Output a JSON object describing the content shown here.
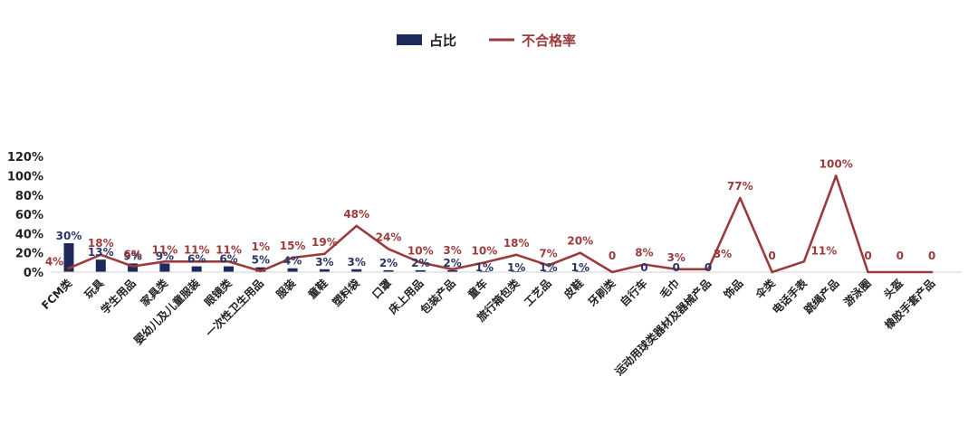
{
  "chart_data": {
    "type": "bar",
    "title": "",
    "xlabel": "",
    "ylabel": "",
    "ylim": [
      0,
      120
    ],
    "y_ticks": [
      "0%",
      "20%",
      "40%",
      "60%",
      "80%",
      "100%",
      "120%"
    ],
    "grid": false,
    "legend_position": "top-center",
    "categories": [
      "FCM类",
      "玩具",
      "学生用品",
      "家具类",
      "婴幼儿及儿童服装",
      "眼镜类",
      "一次性卫生用品",
      "服装",
      "童鞋",
      "塑料袋",
      "口罩",
      "床上用品",
      "包装产品",
      "童车",
      "旅行箱包类",
      "工艺品",
      "皮鞋",
      "牙刷类",
      "自行车",
      "毛巾",
      "运动用球类器材及器械产品",
      "饰品",
      "伞类",
      "电话手表",
      "跳绳产品",
      "游泳圈",
      "头盔",
      "橡胶手套产品"
    ],
    "series": [
      {
        "name": "占比",
        "type": "bar",
        "color": "#1f2a5c",
        "values": [
          30,
          13,
          9,
          9,
          6,
          6,
          5,
          4,
          3,
          3,
          2,
          2,
          2,
          1,
          1,
          1,
          1,
          0,
          0,
          0,
          0,
          null,
          null,
          null,
          null,
          null,
          null,
          null
        ],
        "labels": [
          "30%",
          "13%",
          "9%",
          "9%",
          "6%",
          "6%",
          "5%",
          "4%",
          "3%",
          "3%",
          "2%",
          "2%",
          "2%",
          "1%",
          "1%",
          "1%",
          "1%",
          "",
          "0",
          "0",
          "0",
          "",
          "",
          "",
          "",
          "",
          "",
          ""
        ]
      },
      {
        "name": "不合格率",
        "type": "line",
        "color": "#9b3b3b",
        "values": [
          4,
          18,
          6,
          11,
          11,
          11,
          1,
          15,
          19,
          48,
          24,
          10,
          3,
          10,
          18,
          7,
          20,
          0,
          8,
          3,
          3,
          77,
          0,
          11,
          100,
          0,
          0,
          0
        ],
        "labels": [
          "4%",
          "18%",
          "6%",
          "11%",
          "11%",
          "11%",
          "1%",
          "15%",
          "19%",
          "48%",
          "24%",
          "10%",
          "3%",
          "10%",
          "18%",
          "7%",
          "20%",
          "0",
          "8%",
          "3%",
          "3%",
          "77%",
          "0",
          "11%",
          "100%",
          "0",
          "0",
          "0"
        ]
      }
    ]
  }
}
